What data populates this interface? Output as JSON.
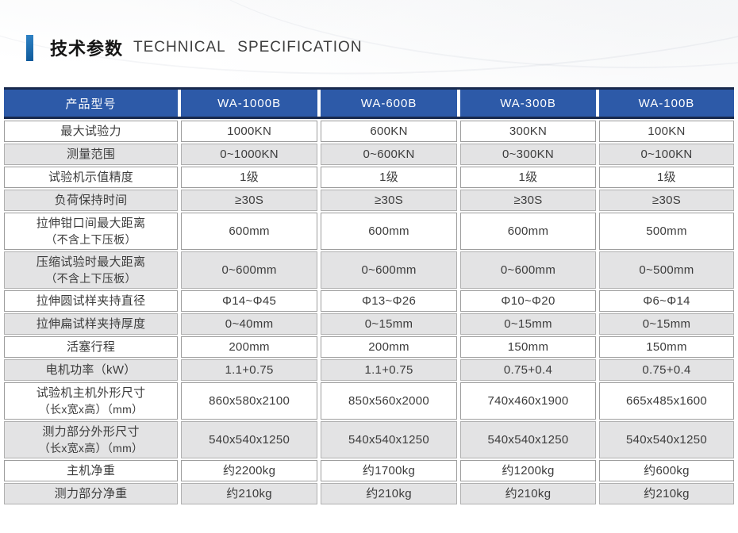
{
  "section": {
    "title_zh": "技术参数",
    "title_en": "TECHNICAL SPECIFICATION"
  },
  "table": {
    "columns": [
      "产品型号",
      "WA-1000B",
      "WA-600B",
      "WA-300B",
      "WA-100B"
    ],
    "rows": [
      {
        "label": "最大试验力",
        "values": [
          "1000KN",
          "600KN",
          "300KN",
          "100KN"
        ]
      },
      {
        "label": "测量范围",
        "values": [
          "0~1000KN",
          "0~600KN",
          "0~300KN",
          "0~100KN"
        ]
      },
      {
        "label": "试验机示值精度",
        "values": [
          "1级",
          "1级",
          "1级",
          "1级"
        ]
      },
      {
        "label": "负荷保持时间",
        "values": [
          "≥30S",
          "≥30S",
          "≥30S",
          "≥30S"
        ]
      },
      {
        "label": "拉伸钳口间最大距离",
        "label2": "（不含上下压板）",
        "values": [
          "600mm",
          "600mm",
          "600mm",
          "500mm"
        ]
      },
      {
        "label": "压缩试验时最大距离",
        "label2": "（不含上下压板）",
        "values": [
          "0~600mm",
          "0~600mm",
          "0~600mm",
          "0~500mm"
        ]
      },
      {
        "label": "拉伸圆试样夹持直径",
        "values": [
          "Φ14~Φ45",
          "Φ13~Φ26",
          "Φ10~Φ20",
          "Φ6~Φ14"
        ]
      },
      {
        "label": "拉伸扁试样夹持厚度",
        "values": [
          "0~40mm",
          "0~15mm",
          "0~15mm",
          "0~15mm"
        ]
      },
      {
        "label": "活塞行程",
        "values": [
          "200mm",
          "200mm",
          "150mm",
          "150mm"
        ]
      },
      {
        "label": "电机功率（kW）",
        "values": [
          "1.1+0.75",
          "1.1+0.75",
          "0.75+0.4",
          "0.75+0.4"
        ]
      },
      {
        "label": "试验机主机外形尺寸",
        "label2": "（长x宽x高）（mm）",
        "values": [
          "860x580x2100",
          "850x560x2000",
          "740x460x1900",
          "665x485x1600"
        ]
      },
      {
        "label": "测力部分外形尺寸",
        "label2": "（长x宽x高）（mm）",
        "values": [
          "540x540x1250",
          "540x540x1250",
          "540x540x1250",
          "540x540x1250"
        ]
      },
      {
        "label": "主机净重",
        "values": [
          "约2200kg",
          "约1700kg",
          "约1200kg",
          "约600kg"
        ]
      },
      {
        "label": "测力部分净重",
        "values": [
          "约210kg",
          "约210kg",
          "约210kg",
          "约210kg"
        ]
      }
    ]
  },
  "colors": {
    "header_bg": "#2d5aa8",
    "header_rule": "#18294d",
    "accent_bar": "#1569ad",
    "alt_row_bg": "#e3e3e4"
  }
}
